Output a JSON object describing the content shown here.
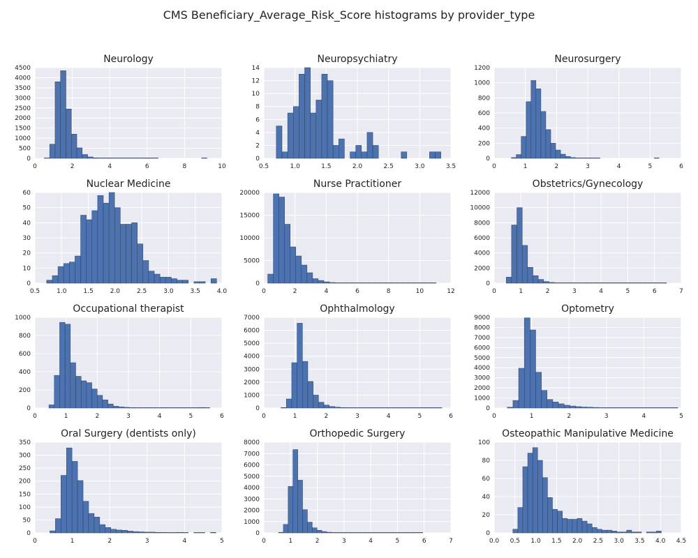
{
  "figure_title": "CMS Beneficiary_Average_Risk_Score histograms by provider_type",
  "colors": {
    "panel_bg": "#EAEAF2",
    "bar": "#4C72B0",
    "bar_edge": "#2F3F5C",
    "grid": "#FFFFFF"
  },
  "chart_data": [
    {
      "type": "bar",
      "title": "Neurology",
      "xlim": [
        0,
        10
      ],
      "ylim": [
        0,
        4500
      ],
      "xticks": [
        0,
        2,
        4,
        6,
        8,
        10
      ],
      "xtick_labels": [
        "0",
        "2",
        "4",
        "6",
        "8",
        "10"
      ],
      "yticks": [
        0,
        500,
        1000,
        1500,
        2000,
        2500,
        3000,
        3500,
        4000,
        4500
      ],
      "ytick_labels": [
        "0",
        "500",
        "1000",
        "1500",
        "2000",
        "2500",
        "3000",
        "3500",
        "4000",
        "4500"
      ],
      "bin_start": 0.5,
      "bin_width": 0.29,
      "values": [
        20,
        700,
        3800,
        4350,
        2450,
        1200,
        520,
        190,
        70,
        25,
        10,
        5,
        3,
        2,
        1,
        1,
        1,
        1,
        1,
        1,
        1,
        0,
        0,
        0,
        0,
        0,
        0,
        0,
        0,
        1
      ]
    },
    {
      "type": "bar",
      "title": "Neuropsychiatry",
      "xlim": [
        0.5,
        3.5
      ],
      "ylim": [
        0,
        14
      ],
      "xticks": [
        0.5,
        1.0,
        1.5,
        2.0,
        2.5,
        3.0,
        3.5
      ],
      "xtick_labels": [
        "0.5",
        "1.0",
        "1.5",
        "2.0",
        "2.5",
        "3.0",
        "3.5"
      ],
      "yticks": [
        0,
        2,
        4,
        6,
        8,
        10,
        12,
        14
      ],
      "ytick_labels": [
        "0",
        "2",
        "4",
        "6",
        "8",
        "10",
        "12",
        "14"
      ],
      "bin_start": 0.7,
      "bin_width": 0.091,
      "values": [
        5,
        1,
        7,
        8,
        13,
        14,
        7,
        9,
        13,
        12,
        2,
        3,
        0,
        1,
        2,
        1,
        4,
        2,
        0,
        0,
        0,
        0,
        1,
        0,
        0,
        0,
        0,
        1,
        1,
        0
      ]
    },
    {
      "type": "bar",
      "title": "Neurosurgery",
      "xlim": [
        0,
        6
      ],
      "ylim": [
        0,
        1200
      ],
      "xticks": [
        0,
        1,
        2,
        3,
        4,
        5,
        6
      ],
      "xtick_labels": [
        "0",
        "1",
        "2",
        "3",
        "4",
        "5",
        "6"
      ],
      "yticks": [
        0,
        200,
        400,
        600,
        800,
        1000,
        1200
      ],
      "ytick_labels": [
        "0",
        "200",
        "400",
        "600",
        "800",
        "1000",
        "1200"
      ],
      "bin_start": 0.55,
      "bin_width": 0.158,
      "values": [
        10,
        50,
        290,
        750,
        1030,
        920,
        620,
        380,
        200,
        110,
        55,
        25,
        10,
        5,
        3,
        2,
        1,
        1,
        0,
        0,
        0,
        0,
        0,
        0,
        0,
        0,
        0,
        0,
        0,
        1
      ]
    },
    {
      "type": "bar",
      "title": "Nuclear Medicine",
      "xlim": [
        0.5,
        4.0
      ],
      "ylim": [
        0,
        60
      ],
      "xticks": [
        0.5,
        1.0,
        1.5,
        2.0,
        2.5,
        3.0,
        3.5,
        4.0
      ],
      "xtick_labels": [
        "0.5",
        "1.0",
        "1.5",
        "2.0",
        "2.5",
        "3.0",
        "3.5",
        "4.0"
      ],
      "yticks": [
        0,
        10,
        20,
        30,
        40,
        50,
        60
      ],
      "ytick_labels": [
        "0",
        "10",
        "20",
        "30",
        "40",
        "50",
        "60"
      ],
      "bin_start": 0.72,
      "bin_width": 0.106,
      "values": [
        2,
        5,
        11,
        13,
        14,
        18,
        45,
        42,
        48,
        58,
        53,
        60,
        50,
        39,
        39,
        40,
        26,
        15,
        8,
        6,
        4,
        4,
        3,
        2,
        2,
        0,
        1,
        1,
        0,
        3
      ]
    },
    {
      "type": "bar",
      "title": "Nurse Practitioner",
      "xlim": [
        0,
        12
      ],
      "ylim": [
        0,
        20000
      ],
      "xticks": [
        0,
        2,
        4,
        6,
        8,
        10,
        12
      ],
      "xtick_labels": [
        "0",
        "2",
        "4",
        "6",
        "8",
        "10",
        "12"
      ],
      "yticks": [
        0,
        5000,
        10000,
        15000,
        20000
      ],
      "ytick_labels": [
        "0",
        "5000",
        "10000",
        "15000",
        "20000"
      ],
      "bin_start": 0.25,
      "bin_width": 0.36,
      "values": [
        2000,
        19700,
        19000,
        13000,
        8000,
        6000,
        4000,
        2300,
        1000,
        600,
        300,
        150,
        80,
        40,
        20,
        10,
        5,
        3,
        2,
        1,
        1,
        1,
        1,
        1,
        1,
        1,
        1,
        1,
        1,
        1
      ]
    },
    {
      "type": "bar",
      "title": "Obstetrics/Gynecology",
      "xlim": [
        0,
        7
      ],
      "ylim": [
        0,
        12000
      ],
      "xticks": [
        0,
        1,
        2,
        3,
        4,
        5,
        6,
        7
      ],
      "xtick_labels": [
        "0",
        "1",
        "2",
        "3",
        "4",
        "5",
        "6",
        "7"
      ],
      "yticks": [
        0,
        2000,
        4000,
        6000,
        8000,
        10000,
        12000
      ],
      "ytick_labels": [
        "0",
        "2000",
        "4000",
        "6000",
        "8000",
        "10000",
        "12000"
      ],
      "bin_start": 0.45,
      "bin_width": 0.2,
      "values": [
        800,
        7700,
        10000,
        5000,
        2100,
        1000,
        500,
        220,
        100,
        50,
        25,
        12,
        6,
        3,
        2,
        1,
        1,
        1,
        1,
        1,
        1,
        1,
        1,
        1,
        1,
        1,
        1,
        1,
        1,
        1
      ]
    },
    {
      "type": "bar",
      "title": "Occupational therapist",
      "xlim": [
        0,
        6
      ],
      "ylim": [
        0,
        1000
      ],
      "xticks": [
        0,
        1,
        2,
        3,
        4,
        5,
        6
      ],
      "xtick_labels": [
        "0",
        "1",
        "2",
        "3",
        "4",
        "5",
        "6"
      ],
      "yticks": [
        0,
        200,
        400,
        600,
        800,
        1000
      ],
      "ytick_labels": [
        "0",
        "200",
        "400",
        "600",
        "800",
        "1000"
      ],
      "bin_start": 0.45,
      "bin_width": 0.172,
      "values": [
        35,
        360,
        945,
        925,
        500,
        350,
        300,
        280,
        210,
        140,
        90,
        45,
        20,
        12,
        8,
        5,
        4,
        2,
        3,
        2,
        1,
        5,
        2,
        1,
        3,
        2,
        1,
        1,
        6,
        1
      ]
    },
    {
      "type": "bar",
      "title": "Ophthalmology",
      "xlim": [
        0,
        6
      ],
      "ylim": [
        0,
        7000
      ],
      "xticks": [
        0,
        1,
        2,
        3,
        4,
        5,
        6
      ],
      "xtick_labels": [
        "0",
        "1",
        "2",
        "3",
        "4",
        "5",
        "6"
      ],
      "yticks": [
        0,
        1000,
        2000,
        3000,
        4000,
        5000,
        6000,
        7000
      ],
      "ytick_labels": [
        "0",
        "1000",
        "2000",
        "3000",
        "4000",
        "5000",
        "6000",
        "7000"
      ],
      "bin_start": 0.55,
      "bin_width": 0.172,
      "values": [
        40,
        700,
        3500,
        6550,
        3600,
        2050,
        1000,
        450,
        230,
        120,
        70,
        40,
        20,
        10,
        5,
        30,
        3,
        2,
        2,
        1,
        1,
        1,
        1,
        1,
        1,
        1,
        1,
        1,
        1,
        1
      ]
    },
    {
      "type": "bar",
      "title": "Optometry",
      "xlim": [
        0,
        5
      ],
      "ylim": [
        0,
        9000
      ],
      "xticks": [
        0,
        1,
        2,
        3,
        4,
        5
      ],
      "xtick_labels": [
        "0",
        "1",
        "2",
        "3",
        "4",
        "5"
      ],
      "yticks": [
        0,
        1000,
        2000,
        3000,
        4000,
        5000,
        6000,
        7000,
        8000,
        9000
      ],
      "ytick_labels": [
        "0",
        "1000",
        "2000",
        "3000",
        "4000",
        "5000",
        "6000",
        "7000",
        "8000",
        "9000"
      ],
      "bin_start": 0.35,
      "bin_width": 0.152,
      "values": [
        80,
        750,
        3950,
        8950,
        7750,
        3550,
        1750,
        850,
        600,
        420,
        280,
        200,
        140,
        100,
        80,
        60,
        40,
        30,
        20,
        15,
        10,
        5,
        3,
        2,
        1,
        1,
        1,
        1,
        1,
        1
      ]
    },
    {
      "type": "bar",
      "title": "Oral Surgery (dentists only)",
      "xlim": [
        0,
        5
      ],
      "ylim": [
        0,
        350
      ],
      "xticks": [
        0,
        1,
        2,
        3,
        4,
        5
      ],
      "xtick_labels": [
        "0",
        "1",
        "2",
        "3",
        "4",
        "5"
      ],
      "yticks": [
        0,
        50,
        100,
        150,
        200,
        250,
        300,
        350
      ],
      "ytick_labels": [
        "0",
        "50",
        "100",
        "150",
        "200",
        "250",
        "300",
        "350"
      ],
      "bin_start": 0.4,
      "bin_width": 0.148,
      "values": [
        8,
        55,
        222,
        328,
        276,
        202,
        122,
        75,
        61,
        32,
        21,
        14,
        11,
        10,
        7,
        5,
        4,
        3,
        3,
        2,
        2,
        1,
        1,
        2,
        1,
        0,
        1,
        1,
        0,
        2
      ]
    },
    {
      "type": "bar",
      "title": "Orthopedic Surgery",
      "xlim": [
        0,
        7
      ],
      "ylim": [
        0,
        8000
      ],
      "xticks": [
        0,
        1,
        2,
        3,
        4,
        5,
        6,
        7
      ],
      "xtick_labels": [
        "0",
        "1",
        "2",
        "3",
        "4",
        "5",
        "6",
        "7"
      ],
      "yticks": [
        0,
        1000,
        2000,
        3000,
        4000,
        5000,
        6000,
        7000,
        8000
      ],
      "ytick_labels": [
        "0",
        "1000",
        "2000",
        "3000",
        "4000",
        "5000",
        "6000",
        "7000",
        "8000"
      ],
      "bin_start": 0.55,
      "bin_width": 0.18,
      "values": [
        50,
        750,
        4100,
        7350,
        4650,
        2050,
        950,
        450,
        230,
        120,
        60,
        30,
        15,
        8,
        4,
        3,
        2,
        2,
        1,
        1,
        1,
        1,
        1,
        1,
        1,
        1,
        1,
        1,
        1,
        1
      ]
    },
    {
      "type": "bar",
      "title": "Osteopathic Manipulative Medicine",
      "xlim": [
        0.0,
        4.5
      ],
      "ylim": [
        0,
        100
      ],
      "xticks": [
        0.0,
        0.5,
        1.0,
        1.5,
        2.0,
        2.5,
        3.0,
        3.5,
        4.0,
        4.5
      ],
      "xtick_labels": [
        "0.0",
        "0.5",
        "1.0",
        "1.5",
        "2.0",
        "2.5",
        "3.0",
        "3.5",
        "4.0",
        "4.5"
      ],
      "yticks": [
        0,
        20,
        40,
        60,
        80,
        100
      ],
      "ytick_labels": [
        "0",
        "20",
        "40",
        "60",
        "80",
        "100"
      ],
      "bin_start": 0.45,
      "bin_width": 0.119,
      "values": [
        4,
        28,
        73,
        88,
        94,
        80,
        61,
        39,
        26,
        24,
        16,
        15,
        15,
        16,
        13,
        10,
        6,
        4,
        3,
        3,
        2,
        1,
        1,
        3,
        1,
        1,
        0,
        1,
        1,
        2
      ]
    }
  ]
}
